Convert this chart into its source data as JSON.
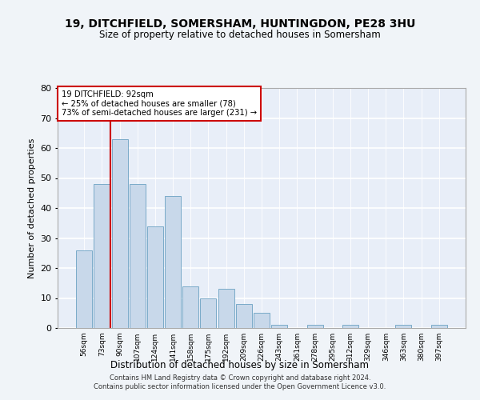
{
  "title1": "19, DITCHFIELD, SOMERSHAM, HUNTINGDON, PE28 3HU",
  "title2": "Size of property relative to detached houses in Somersham",
  "xlabel": "Distribution of detached houses by size in Somersham",
  "ylabel": "Number of detached properties",
  "categories": [
    "56sqm",
    "73sqm",
    "90sqm",
    "107sqm",
    "124sqm",
    "141sqm",
    "158sqm",
    "175sqm",
    "192sqm",
    "209sqm",
    "226sqm",
    "243sqm",
    "261sqm",
    "278sqm",
    "295sqm",
    "312sqm",
    "329sqm",
    "346sqm",
    "363sqm",
    "380sqm",
    "397sqm"
  ],
  "values": [
    26,
    48,
    63,
    48,
    34,
    44,
    14,
    10,
    13,
    8,
    5,
    1,
    0,
    1,
    0,
    1,
    0,
    0,
    1,
    0,
    1
  ],
  "bar_color": "#c8d8ea",
  "bar_edge_color": "#7aaac8",
  "background_color": "#e8eef8",
  "grid_color": "#ffffff",
  "annotation_box_text": "19 DITCHFIELD: 92sqm\n← 25% of detached houses are smaller (78)\n73% of semi-detached houses are larger (231) →",
  "annotation_box_color": "#cc0000",
  "vline_x_index": 2,
  "ylim": [
    0,
    80
  ],
  "yticks": [
    0,
    10,
    20,
    30,
    40,
    50,
    60,
    70,
    80
  ],
  "footer1": "Contains HM Land Registry data © Crown copyright and database right 2024.",
  "footer2": "Contains public sector information licensed under the Open Government Licence v3.0.",
  "fig_bg": "#f0f4f8"
}
